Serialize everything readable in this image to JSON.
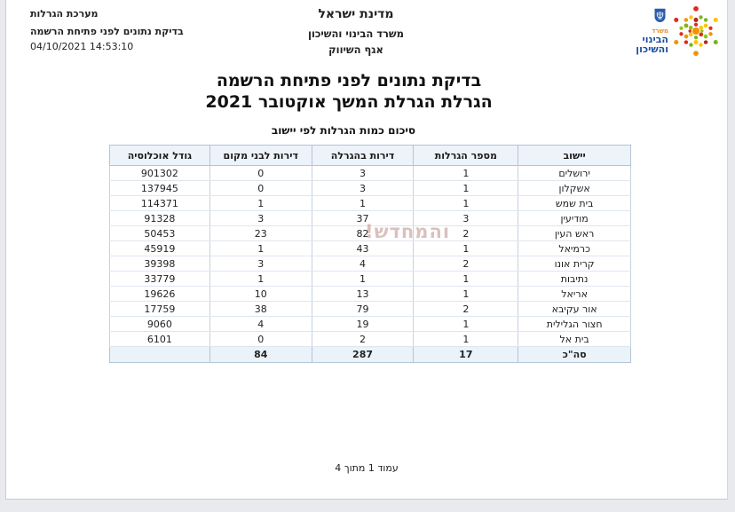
{
  "colors": {
    "header_row_bg": "#edf3fa",
    "total_row_bg": "#eaf2fa",
    "table_border": "#b5c4d6",
    "row_border": "#dfe6ee",
    "watermark_color": "#be8c86",
    "logo_blue": "#1c4f9c",
    "logo_orange": "#f08c1e"
  },
  "report_header": {
    "system_name": "מערכת הגרלות",
    "report_name": "בדיקת נתונים לפני פתיחת הרשמה",
    "generated_at": "04/10/2021 14:53:10"
  },
  "agency_header": {
    "state": "מדינת ישראל",
    "ministry": "משרד הבינוי והשיכון",
    "division": "אגף השיווק"
  },
  "logo": {
    "prefix": "משרד",
    "name_line1": "הבינוי",
    "name_line2": "והשיכון",
    "emblem": "israel-state-emblem",
    "mark": "star-of-david-dots"
  },
  "title": {
    "line1": "בדיקת נתונים לפני פתיחת הרשמה",
    "line2": "הגרלת הגרלת המשך אוקטובר 2021"
  },
  "table": {
    "caption": "סיכום כמות הגרלות לפי יישוב",
    "columns": [
      "יישוב",
      "מספר הגרלות",
      "דירות בהגרלה",
      "דירות לבני מקום",
      "גודל אוכלוסיה"
    ],
    "rows": [
      {
        "city": "ירושלים",
        "lotteries": "1",
        "apartments": "3",
        "local": "0",
        "population": "901302"
      },
      {
        "city": "אשקלון",
        "lotteries": "1",
        "apartments": "3",
        "local": "0",
        "population": "137945"
      },
      {
        "city": "בית שמש",
        "lotteries": "1",
        "apartments": "1",
        "local": "1",
        "population": "114371"
      },
      {
        "city": "מודיעין",
        "lotteries": "3",
        "apartments": "37",
        "local": "3",
        "population": "91328"
      },
      {
        "city": "ראש העין",
        "lotteries": "2",
        "apartments": "82",
        "local": "23",
        "population": "50453"
      },
      {
        "city": "כרמיאל",
        "lotteries": "1",
        "apartments": "43",
        "local": "1",
        "population": "45919"
      },
      {
        "city": "קרית אונו",
        "lotteries": "2",
        "apartments": "4",
        "local": "3",
        "population": "39398"
      },
      {
        "city": "נתיבות",
        "lotteries": "1",
        "apartments": "1",
        "local": "1",
        "population": "33779"
      },
      {
        "city": "אריאל",
        "lotteries": "1",
        "apartments": "13",
        "local": "10",
        "population": "19626"
      },
      {
        "city": "אור עקיבא",
        "lotteries": "2",
        "apartments": "79",
        "local": "38",
        "population": "17759"
      },
      {
        "city": "חצור הגלילית",
        "lotteries": "1",
        "apartments": "19",
        "local": "4",
        "population": "9060"
      },
      {
        "city": "בית אל",
        "lotteries": "1",
        "apartments": "2",
        "local": "0",
        "population": "6101"
      }
    ],
    "total": {
      "label": "סה\"כ",
      "lotteries": "17",
      "apartments": "287",
      "local": "84",
      "population": ""
    }
  },
  "watermark": {
    "text": "והמחדש!"
  },
  "footer": {
    "page_label": "עמוד 1 מתוך 4"
  }
}
